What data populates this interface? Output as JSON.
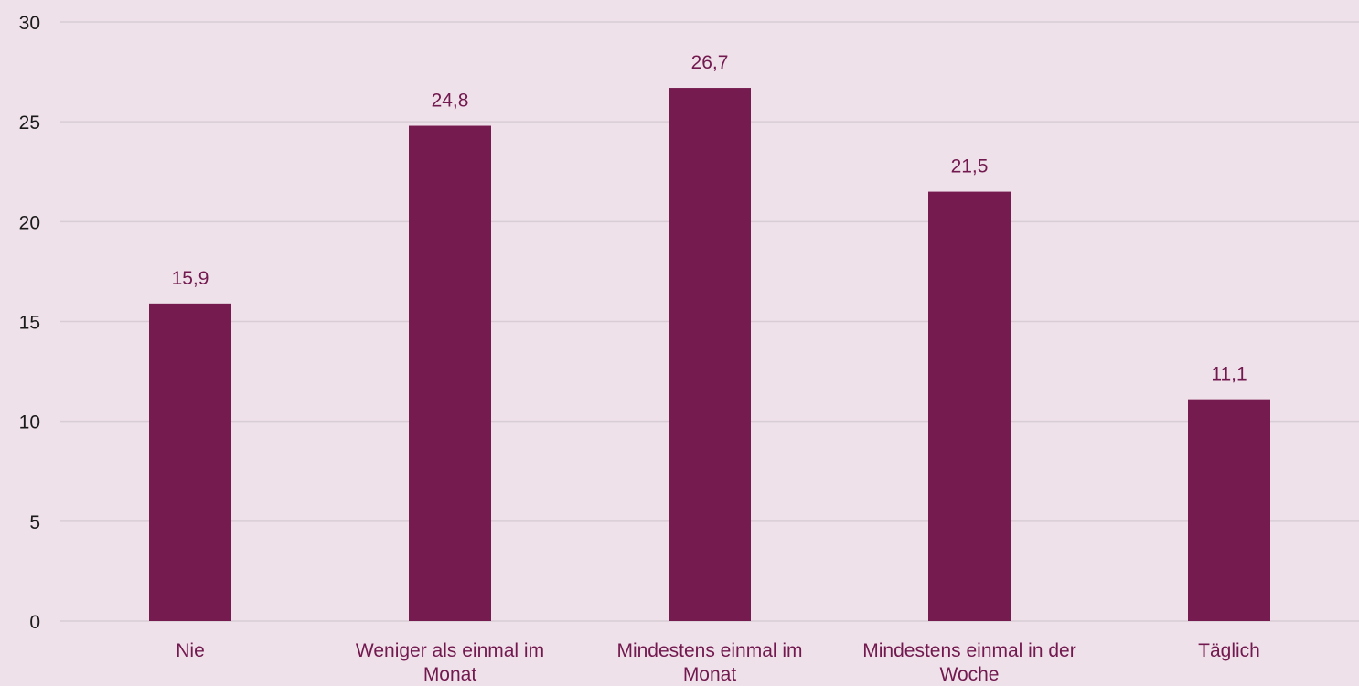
{
  "chart_data": {
    "type": "bar",
    "categories": [
      [
        "Nie"
      ],
      [
        "Weniger als einmal im",
        "Monat"
      ],
      [
        "Mindestens einmal im",
        "Monat"
      ],
      [
        "Mindestens einmal in der",
        "Woche"
      ],
      [
        "Täglich"
      ]
    ],
    "values": [
      15.9,
      24.8,
      26.7,
      21.5,
      11.1
    ],
    "data_labels": [
      "15,9",
      "24,8",
      "26,7",
      "21,5",
      "11,1"
    ],
    "ylim": [
      0,
      30
    ],
    "yticks": [
      0,
      5,
      10,
      15,
      20,
      25,
      30
    ],
    "title": "",
    "xlabel": "",
    "ylabel": "",
    "grid": true,
    "legend": "none",
    "colors": {
      "bar": "#751B4F",
      "background": "#EFE1E9",
      "grid": "#D9CDD5",
      "label": "#72194F",
      "axis_text": "#1A1A1A"
    }
  }
}
